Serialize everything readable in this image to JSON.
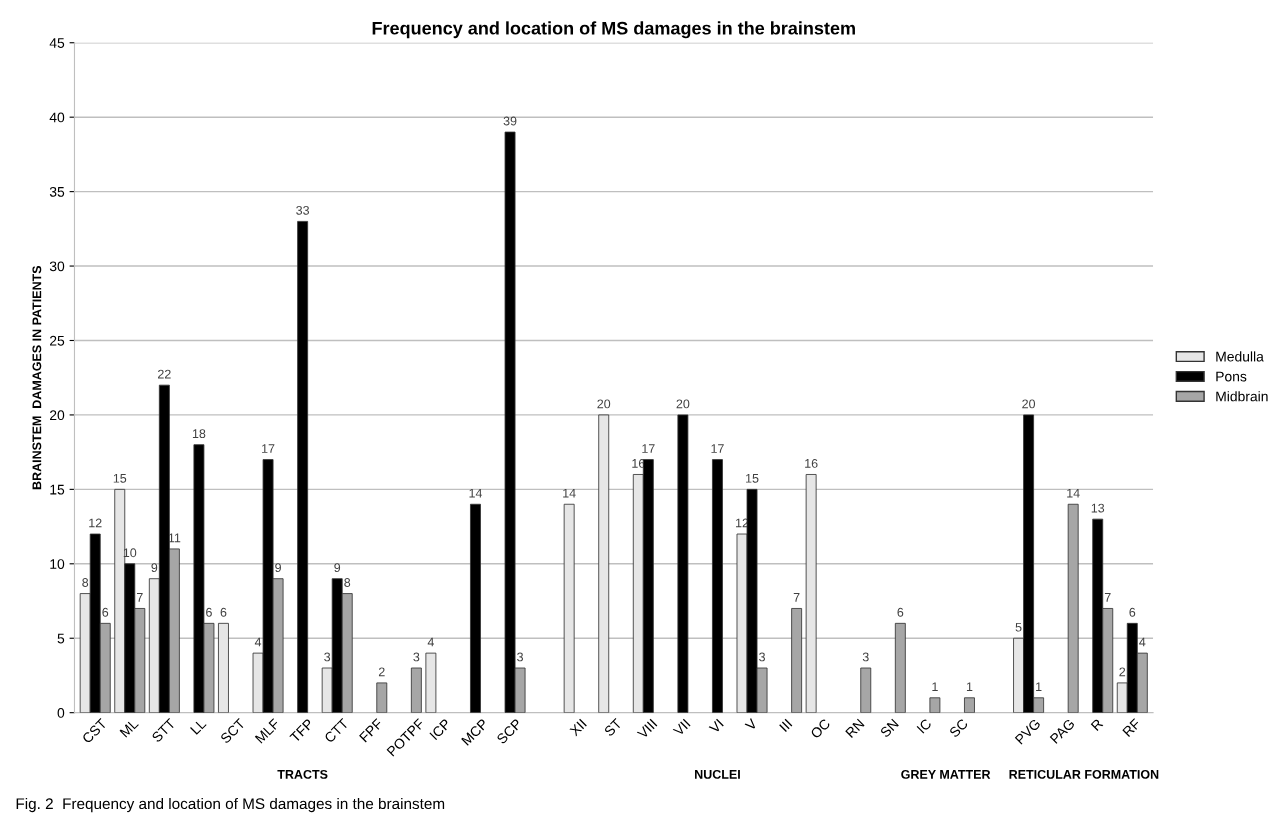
{
  "chart_data": {
    "type": "bar",
    "title": "Frequency and location of MS damages in the brainstem",
    "ylabel": "BRAINSTEM  DAMAGES IN PATIENTS",
    "categories": [
      "CST",
      "ML",
      "STT",
      "LL",
      "SCT",
      "MLF",
      "TFP",
      "CTT",
      "FPF",
      "POTPF",
      "ICP",
      "MCP",
      "SCP",
      null,
      "XII",
      "ST",
      "VIII",
      "VII",
      "VI",
      "V",
      "III",
      "OC",
      "RN",
      "SN",
      "IC",
      "SC",
      null,
      "PVG",
      "PAG",
      "R",
      "RF"
    ],
    "series": [
      {
        "name": "Medulla",
        "color": "#e6e6e6",
        "values": [
          8,
          15,
          9,
          null,
          6,
          4,
          null,
          3,
          null,
          null,
          4,
          null,
          null,
          null,
          14,
          20,
          16,
          null,
          null,
          12,
          null,
          16,
          null,
          null,
          null,
          null,
          null,
          5,
          null,
          null,
          2
        ]
      },
      {
        "name": "Pons",
        "color": "#000000",
        "values": [
          12,
          10,
          22,
          18,
          null,
          17,
          33,
          9,
          null,
          null,
          null,
          14,
          39,
          null,
          null,
          null,
          17,
          20,
          17,
          15,
          null,
          null,
          null,
          null,
          null,
          null,
          null,
          20,
          null,
          13,
          6
        ]
      },
      {
        "name": "Midbrain",
        "color": "#a6a6a6",
        "values": [
          6,
          7,
          11,
          6,
          null,
          9,
          null,
          8,
          2,
          3,
          null,
          null,
          3,
          null,
          null,
          null,
          null,
          null,
          null,
          3,
          7,
          null,
          3,
          6,
          1,
          1,
          null,
          1,
          14,
          7,
          4
        ]
      }
    ],
    "ylim": [
      0,
      45
    ],
    "yticks": [
      0,
      5,
      10,
      15,
      20,
      25,
      30,
      35,
      40,
      45
    ],
    "grid": "y",
    "legend": "right",
    "data_labels": true,
    "annotations": [
      "TRACTS",
      "NUCLEI",
      "GREY MATTER",
      "RETICULAR FORMATION",
      "Fig. 2  Frequency and location of MS damages in the brainstem"
    ]
  }
}
